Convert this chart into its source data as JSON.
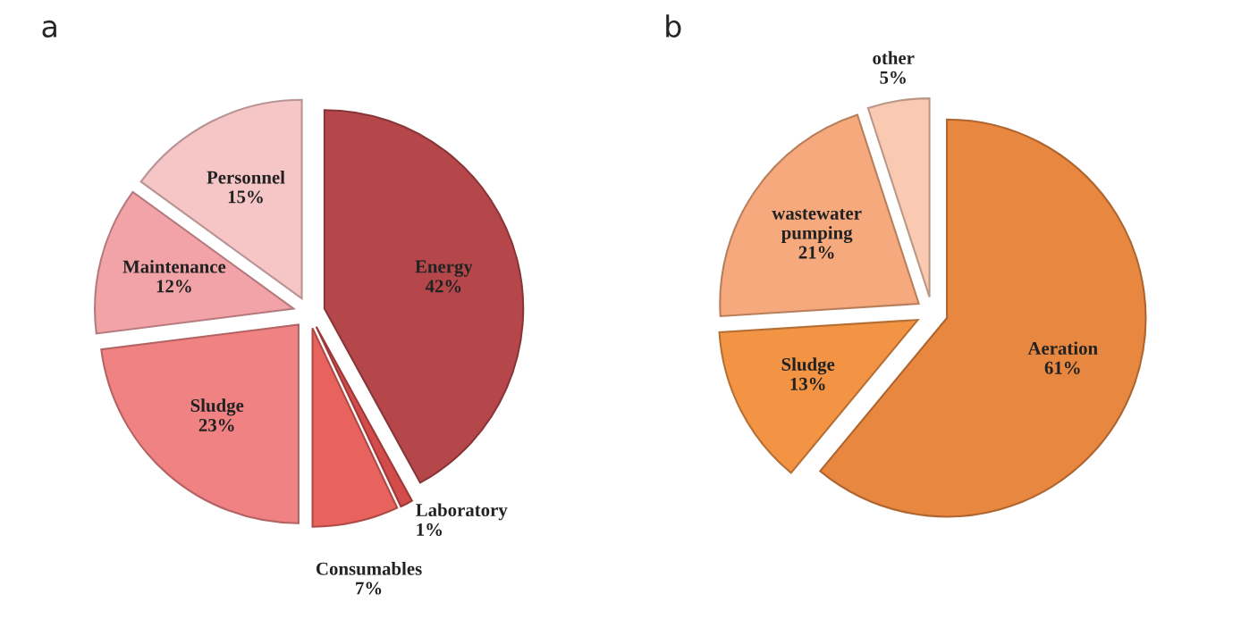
{
  "chart_data": [
    {
      "type": "pie",
      "title": "a",
      "categories": [
        "Energy",
        "Laboratory",
        "Consumables",
        "Sludge",
        "Maintenance",
        "Personnel"
      ],
      "values": [
        42,
        1,
        7,
        23,
        12,
        15
      ],
      "value_labels": [
        "42%",
        "1%",
        "7%",
        "23%",
        "12%",
        "15%"
      ],
      "colors": [
        "#b5474a",
        "#d24c4c",
        "#e8625e",
        "#f08283",
        "#f2a3a8",
        "#f6c5c6"
      ]
    },
    {
      "type": "pie",
      "title": "b",
      "categories": [
        "Aeration",
        "Sludge",
        "wastewater\npumping",
        "other"
      ],
      "values": [
        61,
        13,
        21,
        5
      ],
      "value_labels": [
        "61%",
        "13%",
        "21%",
        "5%"
      ],
      "colors": [
        "#e8873f",
        "#f39444",
        "#f5a97c",
        "#f9c9b2"
      ]
    }
  ]
}
